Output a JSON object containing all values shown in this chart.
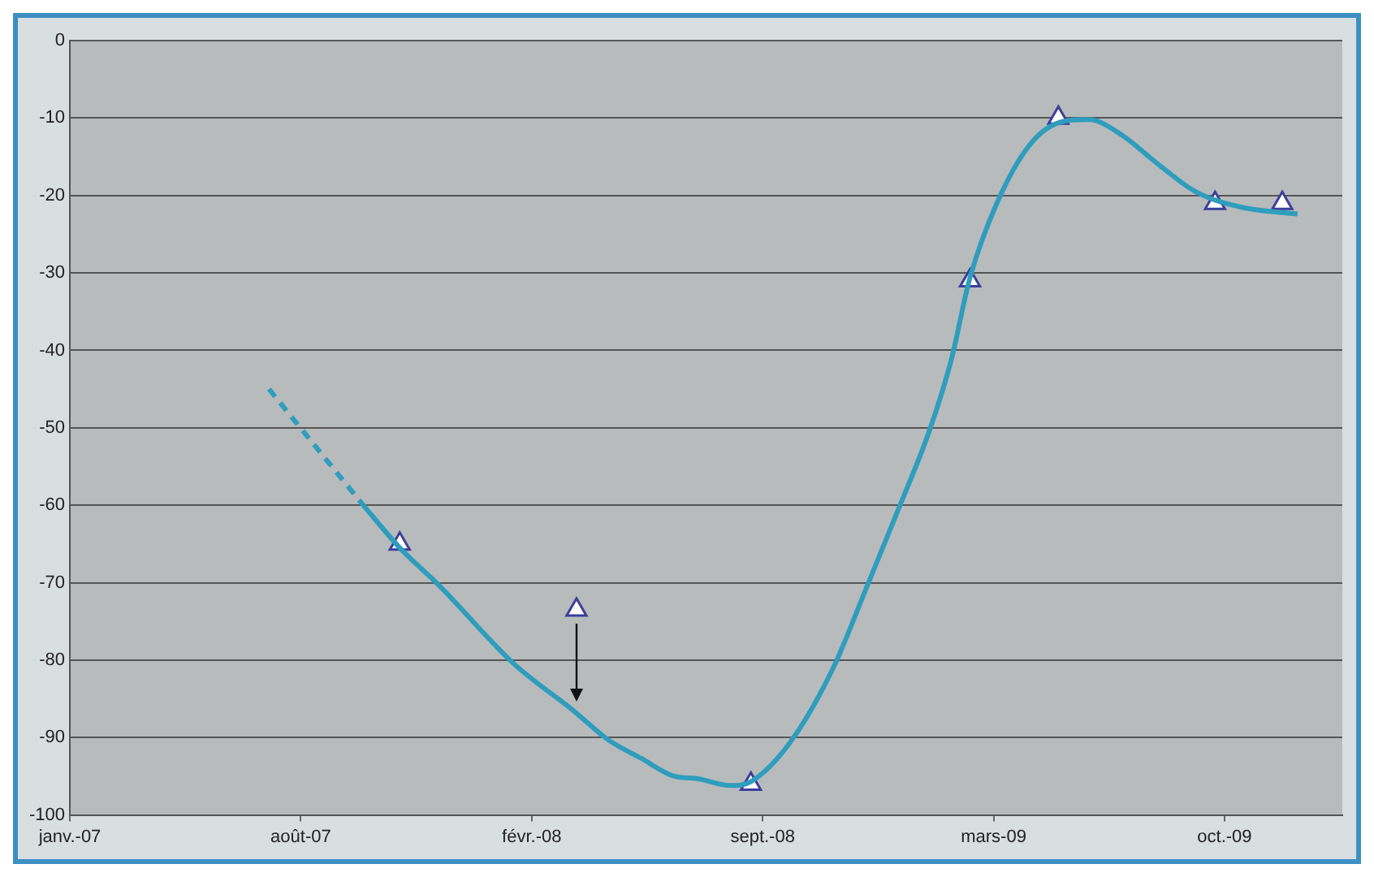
{
  "chart_data": {
    "type": "line",
    "xlim": [
      "2007-01-31",
      "2010-01-15"
    ],
    "xticks": [
      {
        "value": "2007-01-31",
        "label": "janv.-07"
      },
      {
        "value": "2007-08-15",
        "label": "août-07"
      },
      {
        "value": "2008-02-27",
        "label": "févr.-08"
      },
      {
        "value": "2008-09-10",
        "label": "sept.-08"
      },
      {
        "value": "2009-03-25",
        "label": "mars-09"
      },
      {
        "value": "2009-10-07",
        "label": "oct.-09"
      }
    ],
    "ylim": [
      -100,
      0
    ],
    "yticks": [
      -100,
      -90,
      -80,
      -70,
      -60,
      -50,
      -40,
      -30,
      -20,
      -10,
      0
    ],
    "grid": "y",
    "series": [
      {
        "line_style": "dashed",
        "color": "#2f9dbd",
        "x": [
          "2007-07-19",
          "2007-10-07"
        ],
        "values": [
          -45,
          -60
        ]
      },
      {
        "line_style": "solid",
        "color": "#2f9dbd",
        "x": [
          "2007-10-07",
          "2007-11-07",
          "2007-12-10",
          "2008-02-12",
          "2008-04-03",
          "2008-05-01",
          "2008-05-30",
          "2008-06-27",
          "2008-07-16",
          "2008-08-14",
          "2008-08-31",
          "2008-10-02",
          "2008-11-08",
          "2008-12-07",
          "2009-01-03",
          "2009-01-29",
          "2009-02-17",
          "2009-03-05",
          "2009-04-01",
          "2009-04-29",
          "2009-05-28",
          "2009-06-14",
          "2009-07-10",
          "2009-08-12",
          "2009-09-10",
          "2009-09-29",
          "2009-10-28",
          "2009-12-08"
        ],
        "values": [
          -60,
          -65.5,
          -70.3,
          -80.5,
          -86.6,
          -90.2,
          -92.7,
          -95,
          -95.3,
          -96.2,
          -95.7,
          -90.9,
          -81.3,
          -70.7,
          -60.6,
          -50.6,
          -41.3,
          -30.6,
          -19.6,
          -12.7,
          -10.3,
          -10.2,
          -12,
          -16,
          -19.3,
          -20.6,
          -21.7,
          -22.4
        ]
      },
      {
        "type": "scatter",
        "marker": "triangle",
        "color": "#3b3f9a",
        "x": [
          "2007-11-07",
          "2008-04-05",
          "2008-08-31",
          "2009-03-05",
          "2009-05-19",
          "2009-09-29",
          "2009-11-25"
        ],
        "values": [
          -65,
          -73.5,
          -96,
          -31,
          -10,
          -21,
          -21
        ]
      }
    ]
  }
}
